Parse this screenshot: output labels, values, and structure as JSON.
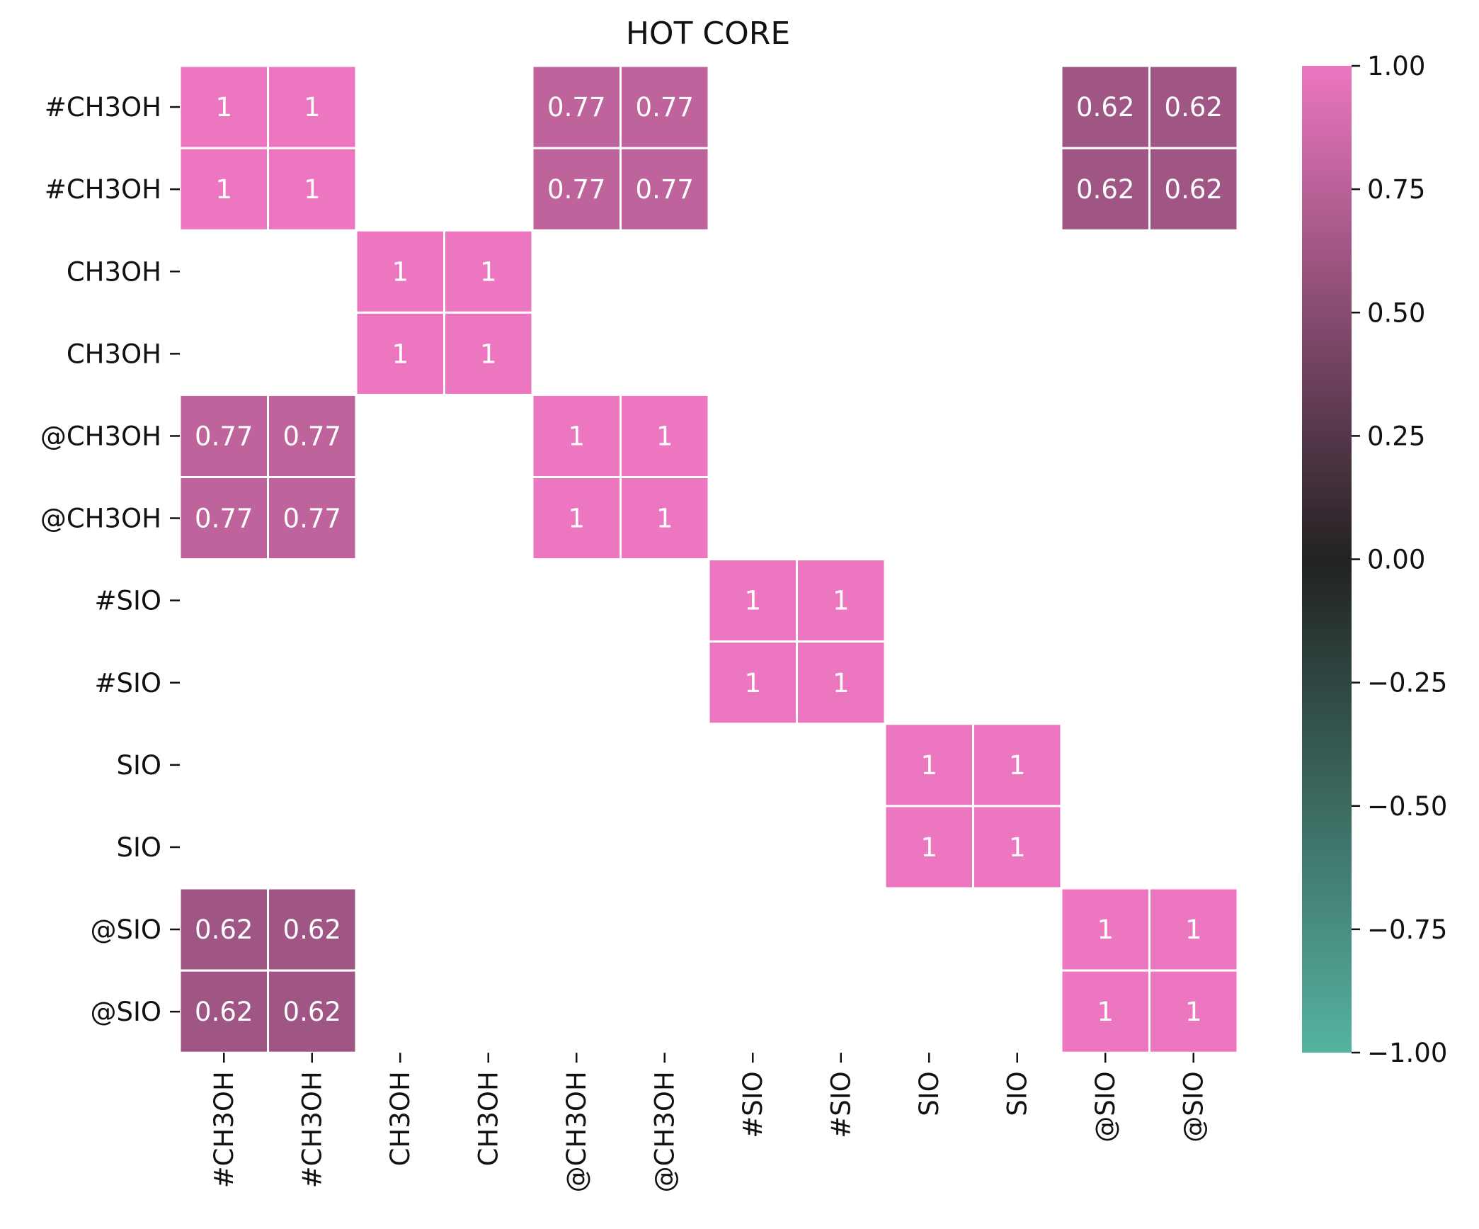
{
  "chart_data": {
    "type": "heatmap",
    "title": "HOT CORE",
    "row_labels": [
      "#CH3OH",
      "#CH3OH",
      "CH3OH",
      "CH3OH",
      "@CH3OH",
      "@CH3OH",
      "#SIO",
      "#SIO",
      "SIO",
      "SIO",
      "@SIO",
      "@SIO"
    ],
    "col_labels": [
      "#CH3OH",
      "#CH3OH",
      "CH3OH",
      "CH3OH",
      "@CH3OH",
      "@CH3OH",
      "#SIO",
      "#SIO",
      "SIO",
      "SIO",
      "@SIO",
      "@SIO"
    ],
    "values": [
      [
        1,
        1,
        null,
        null,
        0.77,
        0.77,
        null,
        null,
        null,
        null,
        0.62,
        0.62
      ],
      [
        1,
        1,
        null,
        null,
        0.77,
        0.77,
        null,
        null,
        null,
        null,
        0.62,
        0.62
      ],
      [
        null,
        null,
        1,
        1,
        null,
        null,
        null,
        null,
        null,
        null,
        null,
        null
      ],
      [
        null,
        null,
        1,
        1,
        null,
        null,
        null,
        null,
        null,
        null,
        null,
        null
      ],
      [
        0.77,
        0.77,
        null,
        null,
        1,
        1,
        null,
        null,
        null,
        null,
        null,
        null
      ],
      [
        0.77,
        0.77,
        null,
        null,
        1,
        1,
        null,
        null,
        null,
        null,
        null,
        null
      ],
      [
        null,
        null,
        null,
        null,
        null,
        null,
        1,
        1,
        null,
        null,
        null,
        null
      ],
      [
        null,
        null,
        null,
        null,
        null,
        null,
        1,
        1,
        null,
        null,
        null,
        null
      ],
      [
        null,
        null,
        null,
        null,
        null,
        null,
        null,
        null,
        1,
        1,
        null,
        null
      ],
      [
        null,
        null,
        null,
        null,
        null,
        null,
        null,
        null,
        1,
        1,
        null,
        null
      ],
      [
        0.62,
        0.62,
        null,
        null,
        null,
        null,
        null,
        null,
        null,
        null,
        1,
        1
      ],
      [
        0.62,
        0.62,
        null,
        null,
        null,
        null,
        null,
        null,
        null,
        null,
        1,
        1
      ]
    ],
    "value_labels": [
      [
        "1",
        "1",
        "",
        "",
        "0.77",
        "0.77",
        "",
        "",
        "",
        "",
        "0.62",
        "0.62"
      ],
      [
        "1",
        "1",
        "",
        "",
        "0.77",
        "0.77",
        "",
        "",
        "",
        "",
        "0.62",
        "0.62"
      ],
      [
        "",
        "",
        "1",
        "1",
        "",
        "",
        "",
        "",
        "",
        "",
        "",
        ""
      ],
      [
        "",
        "",
        "1",
        "1",
        "",
        "",
        "",
        "",
        "",
        "",
        "",
        ""
      ],
      [
        "0.77",
        "0.77",
        "",
        "",
        "1",
        "1",
        "",
        "",
        "",
        "",
        "",
        ""
      ],
      [
        "0.77",
        "0.77",
        "",
        "",
        "1",
        "1",
        "",
        "",
        "",
        "",
        "",
        ""
      ],
      [
        "",
        "",
        "",
        "",
        "",
        "",
        "1",
        "1",
        "",
        "",
        "",
        ""
      ],
      [
        "",
        "",
        "",
        "",
        "",
        "",
        "1",
        "1",
        "",
        "",
        "",
        ""
      ],
      [
        "",
        "",
        "",
        "",
        "",
        "",
        "",
        "",
        "1",
        "1",
        "",
        ""
      ],
      [
        "",
        "",
        "",
        "",
        "",
        "",
        "",
        "",
        "1",
        "1",
        "",
        ""
      ],
      [
        "0.62",
        "0.62",
        "",
        "",
        "",
        "",
        "",
        "",
        "",
        "",
        "1",
        "1"
      ],
      [
        "0.62",
        "0.62",
        "",
        "",
        "",
        "",
        "",
        "",
        "",
        "",
        "1",
        "1"
      ]
    ],
    "colorbar": {
      "range": [
        -1,
        1
      ],
      "ticks": [
        1,
        0.75,
        0.5,
        0.25,
        0,
        -0.25,
        -0.5,
        -0.75,
        -1
      ],
      "tick_labels": [
        "1.00",
        "0.75",
        "0.50",
        "0.25",
        "0.00",
        "−0.25",
        "−0.50",
        "−0.75",
        "−1.00"
      ],
      "colors": {
        "min": "#55b3a0",
        "mid": "#222222",
        "max": "#ec76c0"
      }
    },
    "cell_text_color": "#ffffff",
    "empty_cells": "blank"
  }
}
